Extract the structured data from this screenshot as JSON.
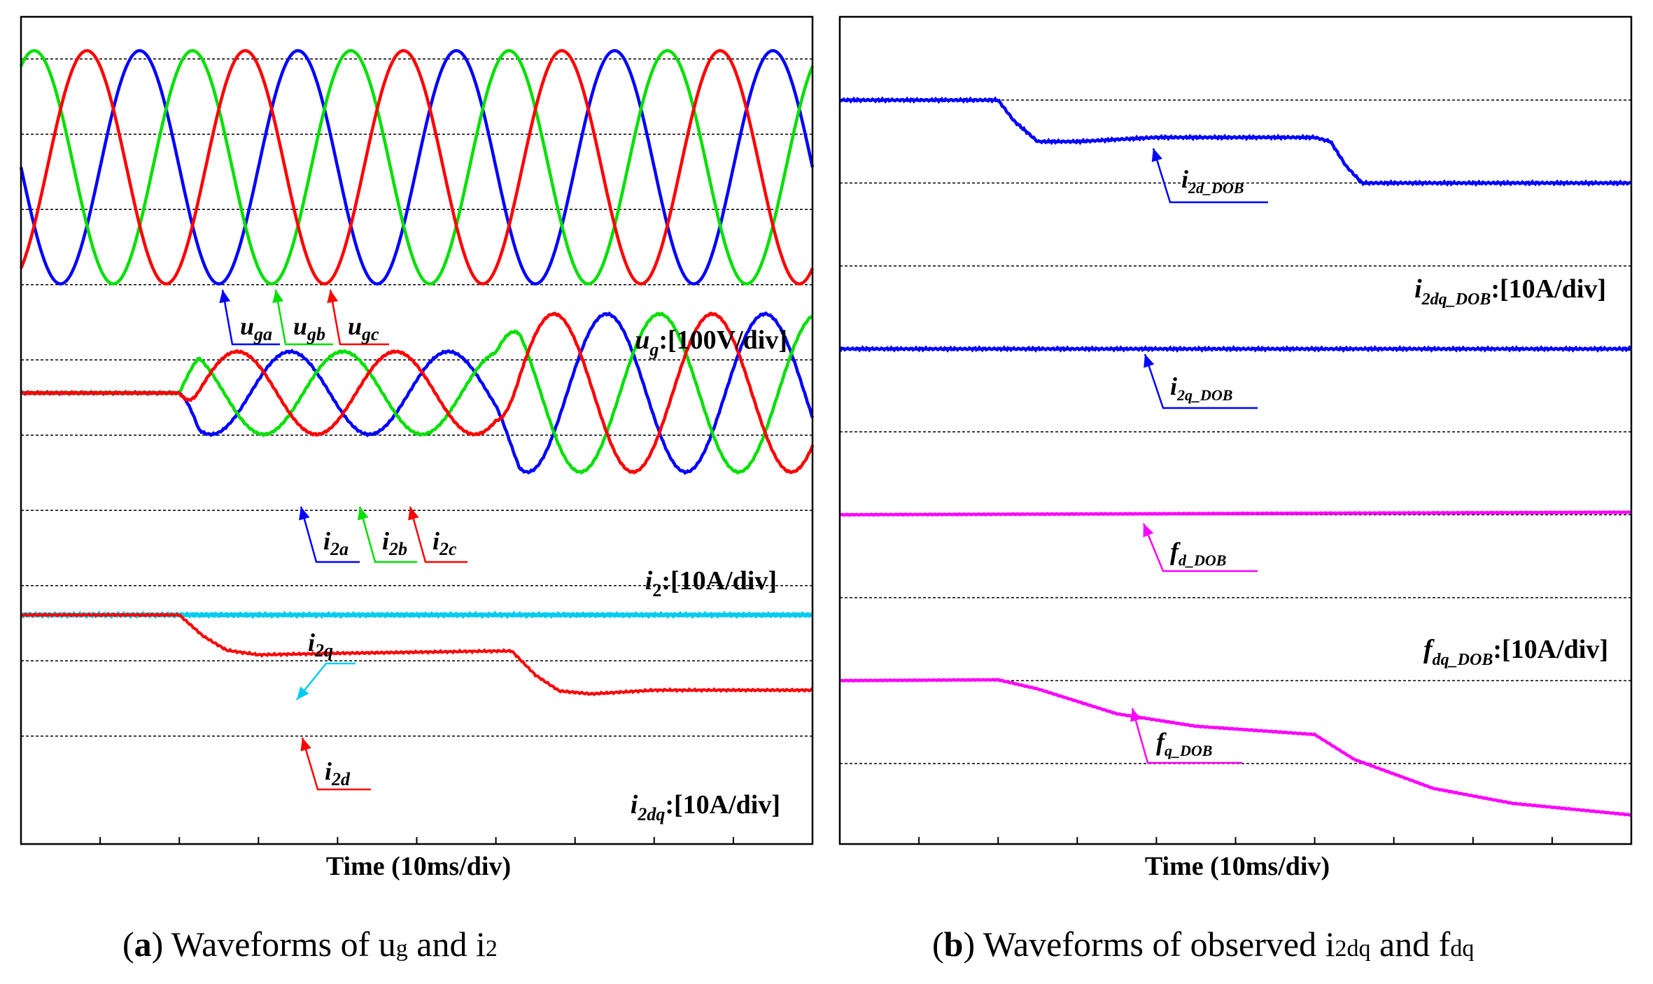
{
  "chart_data": [
    {
      "type": "line",
      "panel": "a",
      "xlabel": "Time (10ms/div)",
      "x_divisions": 10,
      "y_divisions": 10,
      "caption": {
        "letter": "a",
        "text": "Waveforms of u",
        "sub1": "g",
        "mid": " and i",
        "sub2": "2"
      },
      "groups": [
        {
          "scale_label": {
            "sym": "u",
            "sub": "g",
            "rest": ":[100V/div]"
          },
          "center_div": 2.0,
          "series": [
            {
              "name": "u_ga",
              "sym": "u",
              "sub": "ga",
              "color": "#0000ff",
              "amplitude_div": 1.55,
              "frequency_hz": 50,
              "phase_deg": 0
            },
            {
              "name": "u_gb",
              "sym": "u",
              "sub": "gb",
              "color": "#00e000",
              "amplitude_div": 1.55,
              "frequency_hz": 50,
              "phase_deg": -120
            },
            {
              "name": "u_gc",
              "sym": "u",
              "sub": "gc",
              "color": "#ff0000",
              "amplitude_div": 1.55,
              "frequency_hz": 50,
              "phase_deg": 120
            }
          ]
        },
        {
          "scale_label": {
            "sym": "i",
            "sub": "2",
            "rest": ":[10A/div]"
          },
          "center_div": 5.0,
          "step1_time_ms": 20,
          "step2_time_ms": 60,
          "amplitude_after_step1_div": 0.55,
          "amplitude_after_step2_div": 1.05,
          "series": [
            {
              "name": "i_2a",
              "sym": "i",
              "sub": "2a",
              "color": "#0000ff",
              "phase_deg": 0
            },
            {
              "name": "i_2b",
              "sym": "i",
              "sub": "2b",
              "color": "#00e000",
              "phase_deg": -120
            },
            {
              "name": "i_2c",
              "sym": "i",
              "sub": "2c",
              "color": "#ff0000",
              "phase_deg": 120
            }
          ]
        },
        {
          "scale_label": {
            "sym": "i",
            "sub": "2dq",
            "rest": ":[10A/div]"
          },
          "center_div": 8.0,
          "series": [
            {
              "name": "i_2q",
              "sym": "i",
              "sub": "2q",
              "color": "#00ccee",
              "points_ms_div": [
                [
                  0,
                  8.0
                ],
                [
                  100,
                  8.0
                ]
              ]
            },
            {
              "name": "i_2d",
              "sym": "i",
              "sub": "2d",
              "color": "#ff0000",
              "points_ms_div": [
                [
                  0,
                  8.0
                ],
                [
                  20,
                  8.0
                ],
                [
                  23,
                  8.28
                ],
                [
                  26,
                  8.47
                ],
                [
                  30,
                  8.53
                ],
                [
                  40,
                  8.51
                ],
                [
                  60,
                  8.48
                ],
                [
                  62,
                  8.48
                ],
                [
                  65,
                  8.8
                ],
                [
                  68,
                  9.01
                ],
                [
                  72,
                  9.05
                ],
                [
                  80,
                  9.0
                ],
                [
                  100,
                  9.0
                ]
              ]
            }
          ]
        }
      ]
    },
    {
      "type": "line",
      "panel": "b",
      "xlabel": "Time (10ms/div)",
      "x_divisions": 10,
      "y_divisions": 9,
      "caption": {
        "letter": "b",
        "text": "Waveforms of observed i",
        "sub1": "2dq",
        "mid": " and f",
        "sub2": "dq"
      },
      "scale_labels": [
        {
          "sym": "i",
          "sub": "2dq_DOB",
          "rest": ":[10A/div]"
        },
        {
          "sym": "f",
          "sub": "dq_DOB",
          "rest": ":[10A/div]"
        }
      ],
      "series": [
        {
          "name": "i_2d_DOB",
          "sym": "i",
          "sub": "2d_DOB",
          "color": "#0000ff",
          "points_ms_div": [
            [
              0,
              0.0
            ],
            [
              20,
              0.0
            ],
            [
              22,
              0.25
            ],
            [
              25,
              0.5
            ],
            [
              30,
              0.5
            ],
            [
              40,
              0.45
            ],
            [
              60,
              0.45
            ],
            [
              62,
              0.5
            ],
            [
              64,
              0.8
            ],
            [
              66,
              1.0
            ],
            [
              70,
              1.0
            ],
            [
              100,
              1.0
            ]
          ]
        },
        {
          "name": "i_2q_DOB",
          "sym": "i",
          "sub": "2q_DOB",
          "color": "#0000ff",
          "points_ms_div": [
            [
              0,
              3.0
            ],
            [
              100,
              3.0
            ]
          ]
        },
        {
          "name": "f_d_DOB",
          "sym": "f",
          "sub": "d_DOB",
          "color": "#ff00ff",
          "points_ms_div": [
            [
              0,
              5.0
            ],
            [
              100,
              4.97
            ]
          ]
        },
        {
          "name": "f_q_DOB",
          "sym": "f",
          "sub": "q_DOB",
          "color": "#ff00ff",
          "points_ms_div": [
            [
              0,
              7.0
            ],
            [
              20,
              6.99
            ],
            [
              25,
              7.1
            ],
            [
              35,
              7.4
            ],
            [
              45,
              7.55
            ],
            [
              60,
              7.65
            ],
            [
              65,
              7.95
            ],
            [
              75,
              8.3
            ],
            [
              85,
              8.48
            ],
            [
              100,
              8.62
            ]
          ]
        }
      ]
    }
  ]
}
